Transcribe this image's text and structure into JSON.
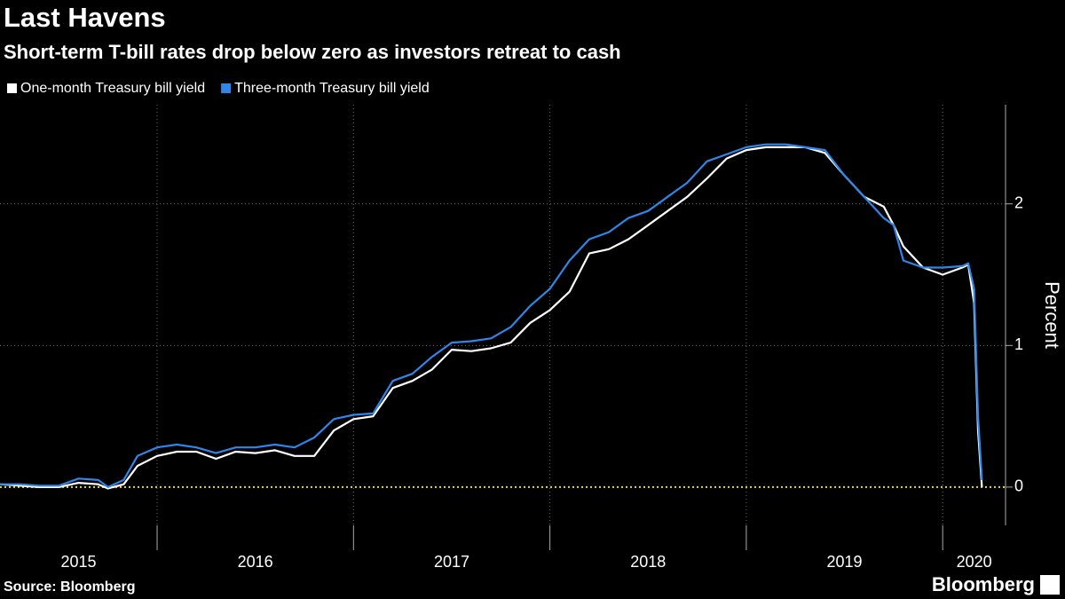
{
  "chart_data": {
    "type": "line",
    "title": "Last Havens",
    "subtitle": "Short-term T-bill rates drop below zero as investors retreat to cash",
    "y_label": "Percent",
    "source": "Source: Bloomberg",
    "brand": "Bloomberg",
    "legend": "top-left",
    "grid": true,
    "x": [
      2015.2,
      2015.3,
      2015.4,
      2015.5,
      2015.6,
      2015.7,
      2015.75,
      2015.83,
      2015.9,
      2016.0,
      2016.1,
      2016.2,
      2016.3,
      2016.4,
      2016.5,
      2016.6,
      2016.7,
      2016.8,
      2016.9,
      2017.0,
      2017.1,
      2017.2,
      2017.3,
      2017.4,
      2017.5,
      2017.6,
      2017.7,
      2017.8,
      2017.9,
      2018.0,
      2018.1,
      2018.2,
      2018.3,
      2018.4,
      2018.5,
      2018.6,
      2018.7,
      2018.8,
      2018.9,
      2019.0,
      2019.1,
      2019.2,
      2019.3,
      2019.4,
      2019.5,
      2019.6,
      2019.7,
      2019.75,
      2019.8,
      2019.9,
      2020.0,
      2020.1,
      2020.13,
      2020.16,
      2020.18,
      2020.2
    ],
    "series": [
      {
        "name": "One-month Treasury bill yield",
        "color": "#ffffff",
        "values": [
          0.02,
          0.01,
          0.0,
          0.0,
          0.03,
          0.02,
          -0.01,
          0.02,
          0.15,
          0.22,
          0.25,
          0.25,
          0.2,
          0.25,
          0.24,
          0.26,
          0.22,
          0.22,
          0.4,
          0.48,
          0.5,
          0.7,
          0.75,
          0.83,
          0.97,
          0.96,
          0.98,
          1.02,
          1.16,
          1.25,
          1.38,
          1.65,
          1.68,
          1.75,
          1.85,
          1.95,
          2.05,
          2.18,
          2.32,
          2.38,
          2.4,
          2.4,
          2.4,
          2.36,
          2.2,
          2.05,
          1.98,
          1.85,
          1.7,
          1.55,
          1.5,
          1.55,
          1.57,
          1.3,
          0.4,
          0.0
        ]
      },
      {
        "name": "Three-month Treasury bill yield",
        "color": "#2f86e8",
        "values": [
          0.02,
          0.02,
          0.01,
          0.01,
          0.06,
          0.05,
          0.0,
          0.05,
          0.22,
          0.28,
          0.3,
          0.28,
          0.24,
          0.28,
          0.28,
          0.3,
          0.28,
          0.35,
          0.48,
          0.51,
          0.52,
          0.75,
          0.8,
          0.92,
          1.02,
          1.03,
          1.05,
          1.13,
          1.28,
          1.4,
          1.6,
          1.75,
          1.8,
          1.9,
          1.95,
          2.05,
          2.15,
          2.3,
          2.35,
          2.4,
          2.42,
          2.42,
          2.4,
          2.38,
          2.2,
          2.05,
          1.9,
          1.85,
          1.6,
          1.55,
          1.55,
          1.56,
          1.58,
          1.4,
          0.5,
          0.05
        ]
      }
    ],
    "xlim": [
      2015.2,
      2020.32
    ],
    "xticks": [
      2015,
      2016,
      2017,
      2018,
      2019,
      2020
    ],
    "ylim": [
      -0.27,
      2.7
    ],
    "yticks": [
      0,
      1,
      2
    ]
  }
}
